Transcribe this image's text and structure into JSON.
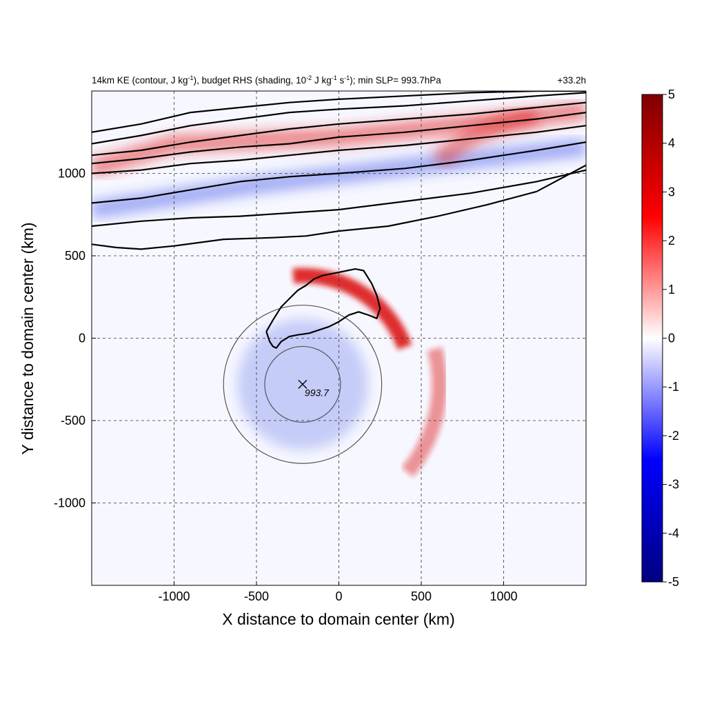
{
  "chart_data": {
    "type": "heatmap",
    "title": {
      "p1": "14km KE (contour, J kg",
      "p1_sup": "-1",
      "p2": "), budget RHS (shading, 10",
      "p2_sup": "-2",
      "p3": " J kg",
      "p3_sup": "-1",
      "p4": " s",
      "p4_sup": "-1",
      "p5": "); min SLP= 993.7hPa"
    },
    "time_label": "+33.2h",
    "xlabel": "X distance to domain center (km)",
    "ylabel": "Y distance to domain center (km)",
    "xlim": [
      -1500,
      1500
    ],
    "ylim": [
      -1500,
      1500
    ],
    "xticks": [
      -1000,
      -500,
      0,
      500,
      1000
    ],
    "yticks": [
      1000,
      500,
      0,
      -500,
      -1000
    ],
    "grid": true,
    "grid_style": "dashed",
    "colorbar": {
      "min": -5,
      "max": 5,
      "ticks": [
        5,
        4,
        3,
        2,
        1,
        0,
        -1,
        -2,
        -3,
        -4,
        -5
      ],
      "colors": [
        "#00007f",
        "#0000ff",
        "#ffffff",
        "#ff0000",
        "#7f0000"
      ]
    },
    "storm_center": {
      "x": -220,
      "y": -280,
      "label": "993.7"
    },
    "range_rings_km": [
      460,
      960
    ],
    "red_bands": [
      {
        "cx": -220,
        "cy": -280,
        "r": 660,
        "start_deg": 20,
        "end_deg": 95,
        "intensity": 0.9
      },
      {
        "cx": -220,
        "cy": -280,
        "r": 830,
        "start_deg": -40,
        "end_deg": 15,
        "intensity": 0.45
      }
    ],
    "jet_streaks": [
      {
        "x": [
          -1500,
          -1000,
          0,
          1000,
          1500
        ],
        "y": [
          1030,
          1180,
          1220,
          1320,
          1380
        ],
        "sign": "positive"
      },
      {
        "x": [
          -1500,
          -500,
          500,
          1500
        ],
        "y": [
          780,
          930,
          1050,
          1160
        ],
        "sign": "negative"
      },
      {
        "x": [
          600,
          800,
          1000,
          1200
        ],
        "y": [
          1080,
          1220,
          1300,
          1350
        ],
        "sign": "positive"
      }
    ],
    "ke_contours": [
      {
        "x": [
          -1500,
          -1200,
          -900,
          -600,
          -300,
          0,
          400,
          800,
          1200,
          1500
        ],
        "y": [
          1250,
          1300,
          1370,
          1400,
          1430,
          1450,
          1470,
          1490,
          1500,
          1500
        ]
      },
      {
        "x": [
          -1500,
          -1200,
          -900,
          -600,
          -300,
          0,
          400,
          800,
          1200,
          1500
        ],
        "y": [
          1180,
          1230,
          1290,
          1330,
          1370,
          1390,
          1410,
          1440,
          1470,
          1490
        ]
      },
      {
        "x": [
          -1500,
          -1200,
          -900,
          -600,
          -300,
          0,
          400,
          800,
          1200,
          1500
        ],
        "y": [
          1110,
          1140,
          1190,
          1230,
          1270,
          1300,
          1330,
          1360,
          1400,
          1430
        ]
      },
      {
        "x": [
          -1500,
          -1200,
          -900,
          -600,
          -300,
          0,
          400,
          800,
          1200,
          1500
        ],
        "y": [
          1060,
          1090,
          1130,
          1160,
          1180,
          1220,
          1250,
          1290,
          1330,
          1370
        ]
      },
      {
        "x": [
          -1500,
          -1200,
          -900,
          -600,
          -300,
          0,
          400,
          800,
          1200,
          1500
        ],
        "y": [
          1000,
          1020,
          1060,
          1080,
          1110,
          1140,
          1170,
          1210,
          1250,
          1290
        ]
      },
      {
        "x": [
          -1500,
          -1200,
          -900,
          -600,
          -300,
          0,
          400,
          800,
          1200,
          1500
        ],
        "y": [
          820,
          850,
          900,
          950,
          980,
          1000,
          1030,
          1080,
          1140,
          1190
        ]
      },
      {
        "x": [
          -1500,
          -1200,
          -900,
          -600,
          -300,
          0,
          400,
          800,
          1200,
          1500
        ],
        "y": [
          680,
          710,
          730,
          740,
          760,
          780,
          830,
          880,
          950,
          1020
        ]
      },
      {
        "x": [
          -1500,
          -1350,
          -1200,
          -1000,
          -700,
          -400,
          -200,
          0,
          300,
          600,
          900,
          1200,
          1500
        ],
        "y": [
          570,
          550,
          540,
          560,
          600,
          610,
          620,
          650,
          680,
          740,
          810,
          890,
          1050
        ]
      },
      {
        "x": [
          -440,
          -400,
          -350,
          -300,
          -250,
          -200,
          -150,
          -100,
          -50,
          0,
          50,
          100,
          150,
          200,
          230,
          250,
          230,
          180,
          120,
          60,
          0,
          -60,
          -120,
          -180,
          -250,
          -300,
          -350,
          -380,
          -400,
          -420,
          -430,
          -440
        ],
        "y": [
          40,
          110,
          190,
          240,
          290,
          320,
          360,
          380,
          390,
          400,
          410,
          420,
          410,
          330,
          260,
          180,
          120,
          140,
          160,
          140,
          100,
          70,
          50,
          30,
          20,
          10,
          -20,
          -60,
          -50,
          -20,
          10,
          40
        ]
      }
    ]
  }
}
